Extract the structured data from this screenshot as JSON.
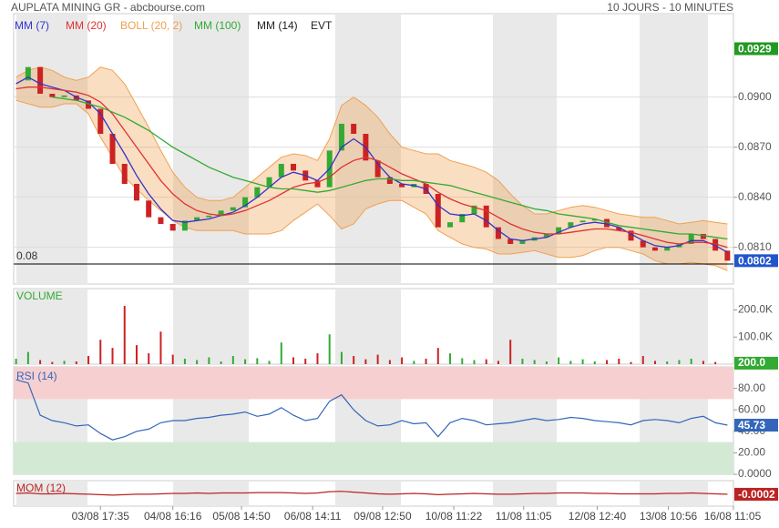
{
  "chart_data": [
    {
      "type": "candlestick",
      "title": "AUPLATA MINING GR - abcbourse.com",
      "subtitle": "10 JOURS - 10 MINUTES",
      "up_color": "#33aa33",
      "down_color": "#cc2222",
      "values": [
        0.091,
        0.0918,
        0.0902,
        0.09,
        0.0901,
        0.0898,
        0.0893,
        0.0878,
        0.086,
        0.0848,
        0.0838,
        0.0828,
        0.0824,
        0.082,
        0.0826,
        0.0828,
        0.0829,
        0.0832,
        0.0834,
        0.084,
        0.0846,
        0.0852,
        0.086,
        0.0856,
        0.085,
        0.0846,
        0.0868,
        0.0884,
        0.0878,
        0.0862,
        0.0852,
        0.0848,
        0.0846,
        0.0848,
        0.0842,
        0.0822,
        0.0825,
        0.083,
        0.0835,
        0.0822,
        0.0815,
        0.0812,
        0.0814,
        0.0816,
        0.0818,
        0.0822,
        0.0825,
        0.0826,
        0.0827,
        0.0822,
        0.082,
        0.0814,
        0.081,
        0.0808,
        0.081,
        0.0812,
        0.0818,
        0.0815,
        0.0808,
        0.0802
      ],
      "high": 0.0929,
      "reference": 0.08,
      "ylim": [
        0.0788,
        0.095
      ],
      "yticks": [
        {
          "value": 0.081,
          "label": "0.0810"
        },
        {
          "value": 0.084,
          "label": "0.0840"
        },
        {
          "value": 0.087,
          "label": "0.0870"
        },
        {
          "value": 0.09,
          "label": "0.0900"
        }
      ],
      "series": [
        {
          "name": "MM (7)",
          "color": "#3333cc",
          "values": [
            0.0908,
            0.0912,
            0.0908,
            0.0906,
            0.0904,
            0.09,
            0.0897,
            0.089,
            0.0878,
            0.0866,
            0.0853,
            0.0842,
            0.0833,
            0.0826,
            0.0825,
            0.0826,
            0.0827,
            0.0829,
            0.0831,
            0.0835,
            0.084,
            0.0846,
            0.0852,
            0.0855,
            0.0853,
            0.085,
            0.0857,
            0.087,
            0.0875,
            0.087,
            0.086,
            0.0852,
            0.0848,
            0.0847,
            0.0845,
            0.0835,
            0.083,
            0.0829,
            0.083,
            0.0826,
            0.082,
            0.0815,
            0.0814,
            0.0815,
            0.0816,
            0.0819,
            0.0822,
            0.0824,
            0.0825,
            0.0824,
            0.0822,
            0.0818,
            0.0814,
            0.0811,
            0.081,
            0.0811,
            0.0814,
            0.0814,
            0.0811,
            0.0807
          ]
        },
        {
          "name": "MM (20)",
          "color": "#dd3333",
          "values": [
            0.0905,
            0.0906,
            0.0906,
            0.0905,
            0.0904,
            0.0903,
            0.0901,
            0.0897,
            0.089,
            0.088,
            0.087,
            0.086,
            0.085,
            0.0842,
            0.0836,
            0.0832,
            0.083,
            0.0829,
            0.083,
            0.0832,
            0.0835,
            0.0838,
            0.0842,
            0.0846,
            0.0848,
            0.0849,
            0.0852,
            0.0858,
            0.0862,
            0.0864,
            0.0862,
            0.0858,
            0.0854,
            0.0851,
            0.0848,
            0.0843,
            0.0839,
            0.0836,
            0.0834,
            0.0832,
            0.0828,
            0.0824,
            0.0821,
            0.0819,
            0.0818,
            0.0818,
            0.0819,
            0.082,
            0.0821,
            0.0821,
            0.082,
            0.0819,
            0.0817,
            0.0815,
            0.0813,
            0.0812,
            0.0813,
            0.0813,
            0.0812,
            0.081
          ]
        },
        {
          "name": "BOLL (20, 2)",
          "color": "#f0a050",
          "upper": [
            0.0912,
            0.0916,
            0.0918,
            0.0916,
            0.0912,
            0.091,
            0.0912,
            0.0918,
            0.0916,
            0.0908,
            0.0895,
            0.0882,
            0.0868,
            0.0855,
            0.0846,
            0.084,
            0.0838,
            0.0838,
            0.084,
            0.0846,
            0.0852,
            0.0858,
            0.0864,
            0.0866,
            0.0865,
            0.0862,
            0.0875,
            0.0895,
            0.09,
            0.0895,
            0.0888,
            0.0878,
            0.087,
            0.0868,
            0.0866,
            0.0866,
            0.0862,
            0.086,
            0.0858,
            0.0855,
            0.085,
            0.0842,
            0.0835,
            0.083,
            0.083,
            0.0832,
            0.0834,
            0.0835,
            0.0834,
            0.0832,
            0.083,
            0.0829,
            0.0828,
            0.0828,
            0.0826,
            0.0824,
            0.0825,
            0.0826,
            0.0825,
            0.0824
          ],
          "lower": [
            0.0898,
            0.0896,
            0.0894,
            0.0894,
            0.0896,
            0.0896,
            0.089,
            0.0876,
            0.0864,
            0.0852,
            0.0845,
            0.0838,
            0.0832,
            0.0826,
            0.0822,
            0.082,
            0.082,
            0.082,
            0.082,
            0.0818,
            0.0818,
            0.0818,
            0.082,
            0.0826,
            0.0831,
            0.0836,
            0.0829,
            0.0821,
            0.0824,
            0.0833,
            0.0836,
            0.0838,
            0.0838,
            0.0834,
            0.083,
            0.082,
            0.0816,
            0.0812,
            0.081,
            0.0809,
            0.0806,
            0.0806,
            0.0807,
            0.0808,
            0.0806,
            0.0804,
            0.0804,
            0.0805,
            0.0808,
            0.081,
            0.081,
            0.0808,
            0.0806,
            0.0802,
            0.08,
            0.08,
            0.0801,
            0.08,
            0.0799,
            0.0796
          ]
        },
        {
          "name": "MM (100)",
          "color": "#33aa33",
          "values": [
            null,
            null,
            null,
            0.09,
            0.0899,
            0.0898,
            0.0896,
            0.0894,
            0.0891,
            0.0888,
            0.0884,
            0.088,
            0.0875,
            0.087,
            0.0866,
            0.0862,
            0.0858,
            0.0855,
            0.0852,
            0.085,
            0.0848,
            0.0846,
            0.0845,
            0.0845,
            0.0844,
            0.0843,
            0.0844,
            0.0846,
            0.0848,
            0.085,
            0.0851,
            0.0851,
            0.085,
            0.085,
            0.0849,
            0.0848,
            0.0847,
            0.0845,
            0.0843,
            0.0841,
            0.0839,
            0.0837,
            0.0835,
            0.0833,
            0.0832,
            0.083,
            0.0829,
            0.0828,
            0.0827,
            0.0825,
            0.0823,
            0.0822,
            0.0821,
            0.082,
            0.0819,
            0.0818,
            0.0818,
            0.0817,
            0.0816,
            0.0815
          ]
        },
        {
          "name": "MM (14)",
          "color": "#222222"
        },
        {
          "name": "EVT",
          "color": "#222222"
        }
      ]
    },
    {
      "type": "bar",
      "title": "VOLUME",
      "color": "#33aa33",
      "values": [
        20000,
        45000,
        15000,
        8000,
        12000,
        10000,
        30000,
        90000,
        60000,
        215000,
        70000,
        40000,
        120000,
        35000,
        20000,
        15000,
        25000,
        10000,
        30000,
        18000,
        22000,
        12000,
        80000,
        25000,
        20000,
        40000,
        110000,
        45000,
        30000,
        18000,
        35000,
        15000,
        25000,
        12000,
        20000,
        60000,
        40000,
        22000,
        15000,
        18000,
        12000,
        90000,
        20000,
        15000,
        10000,
        25000,
        12000,
        18000,
        10000,
        15000,
        20000,
        8000,
        30000,
        12000,
        10000,
        15000,
        20000,
        12000,
        8000,
        200
      ],
      "last_label": "200.0",
      "ylim": [
        0,
        279000
      ],
      "yticks": [
        {
          "value": 100000,
          "label": "100.0K"
        },
        {
          "value": 200000,
          "label": "200.0K"
        }
      ]
    },
    {
      "type": "line",
      "title": "RSI (14)",
      "color": "#3366bb",
      "values": [
        88,
        85,
        55,
        50,
        48,
        45,
        46,
        38,
        32,
        35,
        40,
        42,
        48,
        50,
        50,
        52,
        53,
        55,
        56,
        58,
        54,
        56,
        62,
        55,
        50,
        52,
        68,
        74,
        60,
        50,
        45,
        46,
        50,
        47,
        48,
        35,
        48,
        52,
        50,
        46,
        47,
        48,
        50,
        52,
        50,
        51,
        53,
        52,
        50,
        49,
        48,
        46,
        50,
        51,
        50,
        48,
        52,
        54,
        48,
        45.73
      ],
      "ylim": [
        0,
        100
      ],
      "yticks": [
        {
          "value": 0,
          "label": "0.0000"
        },
        {
          "value": 20,
          "label": "20.00"
        },
        {
          "value": 40,
          "label": "40.00"
        },
        {
          "value": 60,
          "label": "60.00"
        },
        {
          "value": 80,
          "label": "80.00"
        }
      ],
      "zones": [
        {
          "from": 70,
          "to": 100,
          "color": "#f6d0d0"
        },
        {
          "from": 0,
          "to": 30,
          "color": "#d4e9d4"
        }
      ]
    },
    {
      "type": "line",
      "title": "MOM (12)",
      "color": "#bb2222",
      "values": [
        0,
        0.0001,
        -0.0001,
        -0.0001,
        0,
        -0.0001,
        -0.0002,
        -0.0003,
        -0.0004,
        -0.0003,
        -0.0002,
        -0.0002,
        -0.0001,
        0,
        0,
        0.0001,
        0,
        0.0001,
        0.0001,
        0.0001,
        0.0002,
        0.0002,
        0.0002,
        0.0001,
        0,
        0.0001,
        0.0004,
        0.0005,
        0.0003,
        0.0001,
        -0.0001,
        -0.0002,
        -0.0001,
        0,
        -0.0001,
        -0.0003,
        -0.0002,
        -0.0001,
        0,
        -0.0001,
        -0.0002,
        -0.0002,
        -0.0001,
        0,
        0,
        0.0001,
        0.0001,
        0.0001,
        0,
        0,
        -0.0001,
        -0.0001,
        -0.0001,
        -0.0001,
        0,
        0,
        0.0001,
        0,
        -0.0001,
        -0.0002
      ],
      "ylim": [
        -0.003,
        0.003
      ],
      "xlim": [
        -0.2,
        59.5
      ],
      "xticks": [
        {
          "value": 7,
          "label": "03/08 17:35"
        },
        {
          "value": 13,
          "label": "04/08 16:16"
        },
        {
          "value": 18.7,
          "label": "05/08 14:50"
        },
        {
          "value": 24.6,
          "label": "06/08 14:11"
        },
        {
          "value": 30.4,
          "label": "09/08 12:50"
        },
        {
          "value": 36.3,
          "label": "10/08 11:22"
        },
        {
          "value": 42.1,
          "label": "11/08 11:05"
        },
        {
          "value": 48.2,
          "label": "12/08 12:40"
        },
        {
          "value": 54.1,
          "label": "13/08 10:56"
        },
        {
          "value": 59.5,
          "label": "16/08 11:05"
        }
      ]
    }
  ]
}
